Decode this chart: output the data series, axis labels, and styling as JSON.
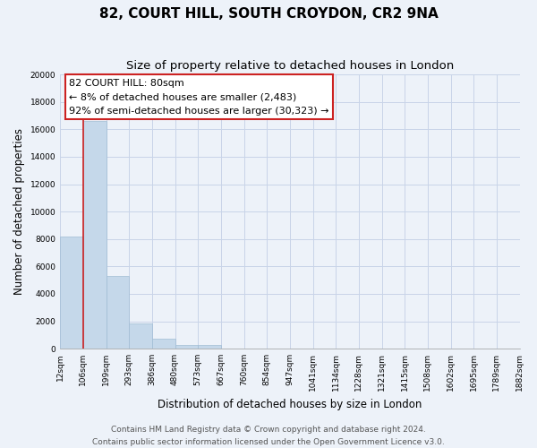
{
  "title": "82, COURT HILL, SOUTH CROYDON, CR2 9NA",
  "subtitle": "Size of property relative to detached houses in London",
  "xlabel": "Distribution of detached houses by size in London",
  "ylabel": "Number of detached properties",
  "bar_values": [
    8200,
    16600,
    5300,
    1850,
    750,
    280,
    270,
    0,
    0,
    0,
    0,
    0,
    0,
    0,
    0,
    0,
    0,
    0,
    0,
    0
  ],
  "bar_labels": [
    "12sqm",
    "106sqm",
    "199sqm",
    "293sqm",
    "386sqm",
    "480sqm",
    "573sqm",
    "667sqm",
    "760sqm",
    "854sqm",
    "947sqm",
    "1041sqm",
    "1134sqm",
    "1228sqm",
    "1321sqm",
    "1415sqm",
    "1508sqm",
    "1602sqm",
    "1695sqm",
    "1789sqm",
    "1882sqm"
  ],
  "bar_color": "#c5d8ea",
  "bar_edge_color": "#a0bcd4",
  "highlight_color": "#cc2222",
  "annotation_line1": "82 COURT HILL: 80sqm",
  "annotation_line2": "← 8% of detached houses are smaller (2,483)",
  "annotation_line3": "92% of semi-detached houses are larger (30,323) →",
  "ylim_max": 20000,
  "ytick_step": 2000,
  "footer_line1": "Contains HM Land Registry data © Crown copyright and database right 2024.",
  "footer_line2": "Contains public sector information licensed under the Open Government Licence v3.0.",
  "bg_color": "#edf2f9",
  "grid_color": "#c8d4e8",
  "title_fontsize": 11,
  "subtitle_fontsize": 9.5,
  "axis_label_fontsize": 8.5,
  "tick_fontsize": 6.5,
  "annotation_fontsize": 8,
  "footer_fontsize": 6.5,
  "num_bars": 20
}
